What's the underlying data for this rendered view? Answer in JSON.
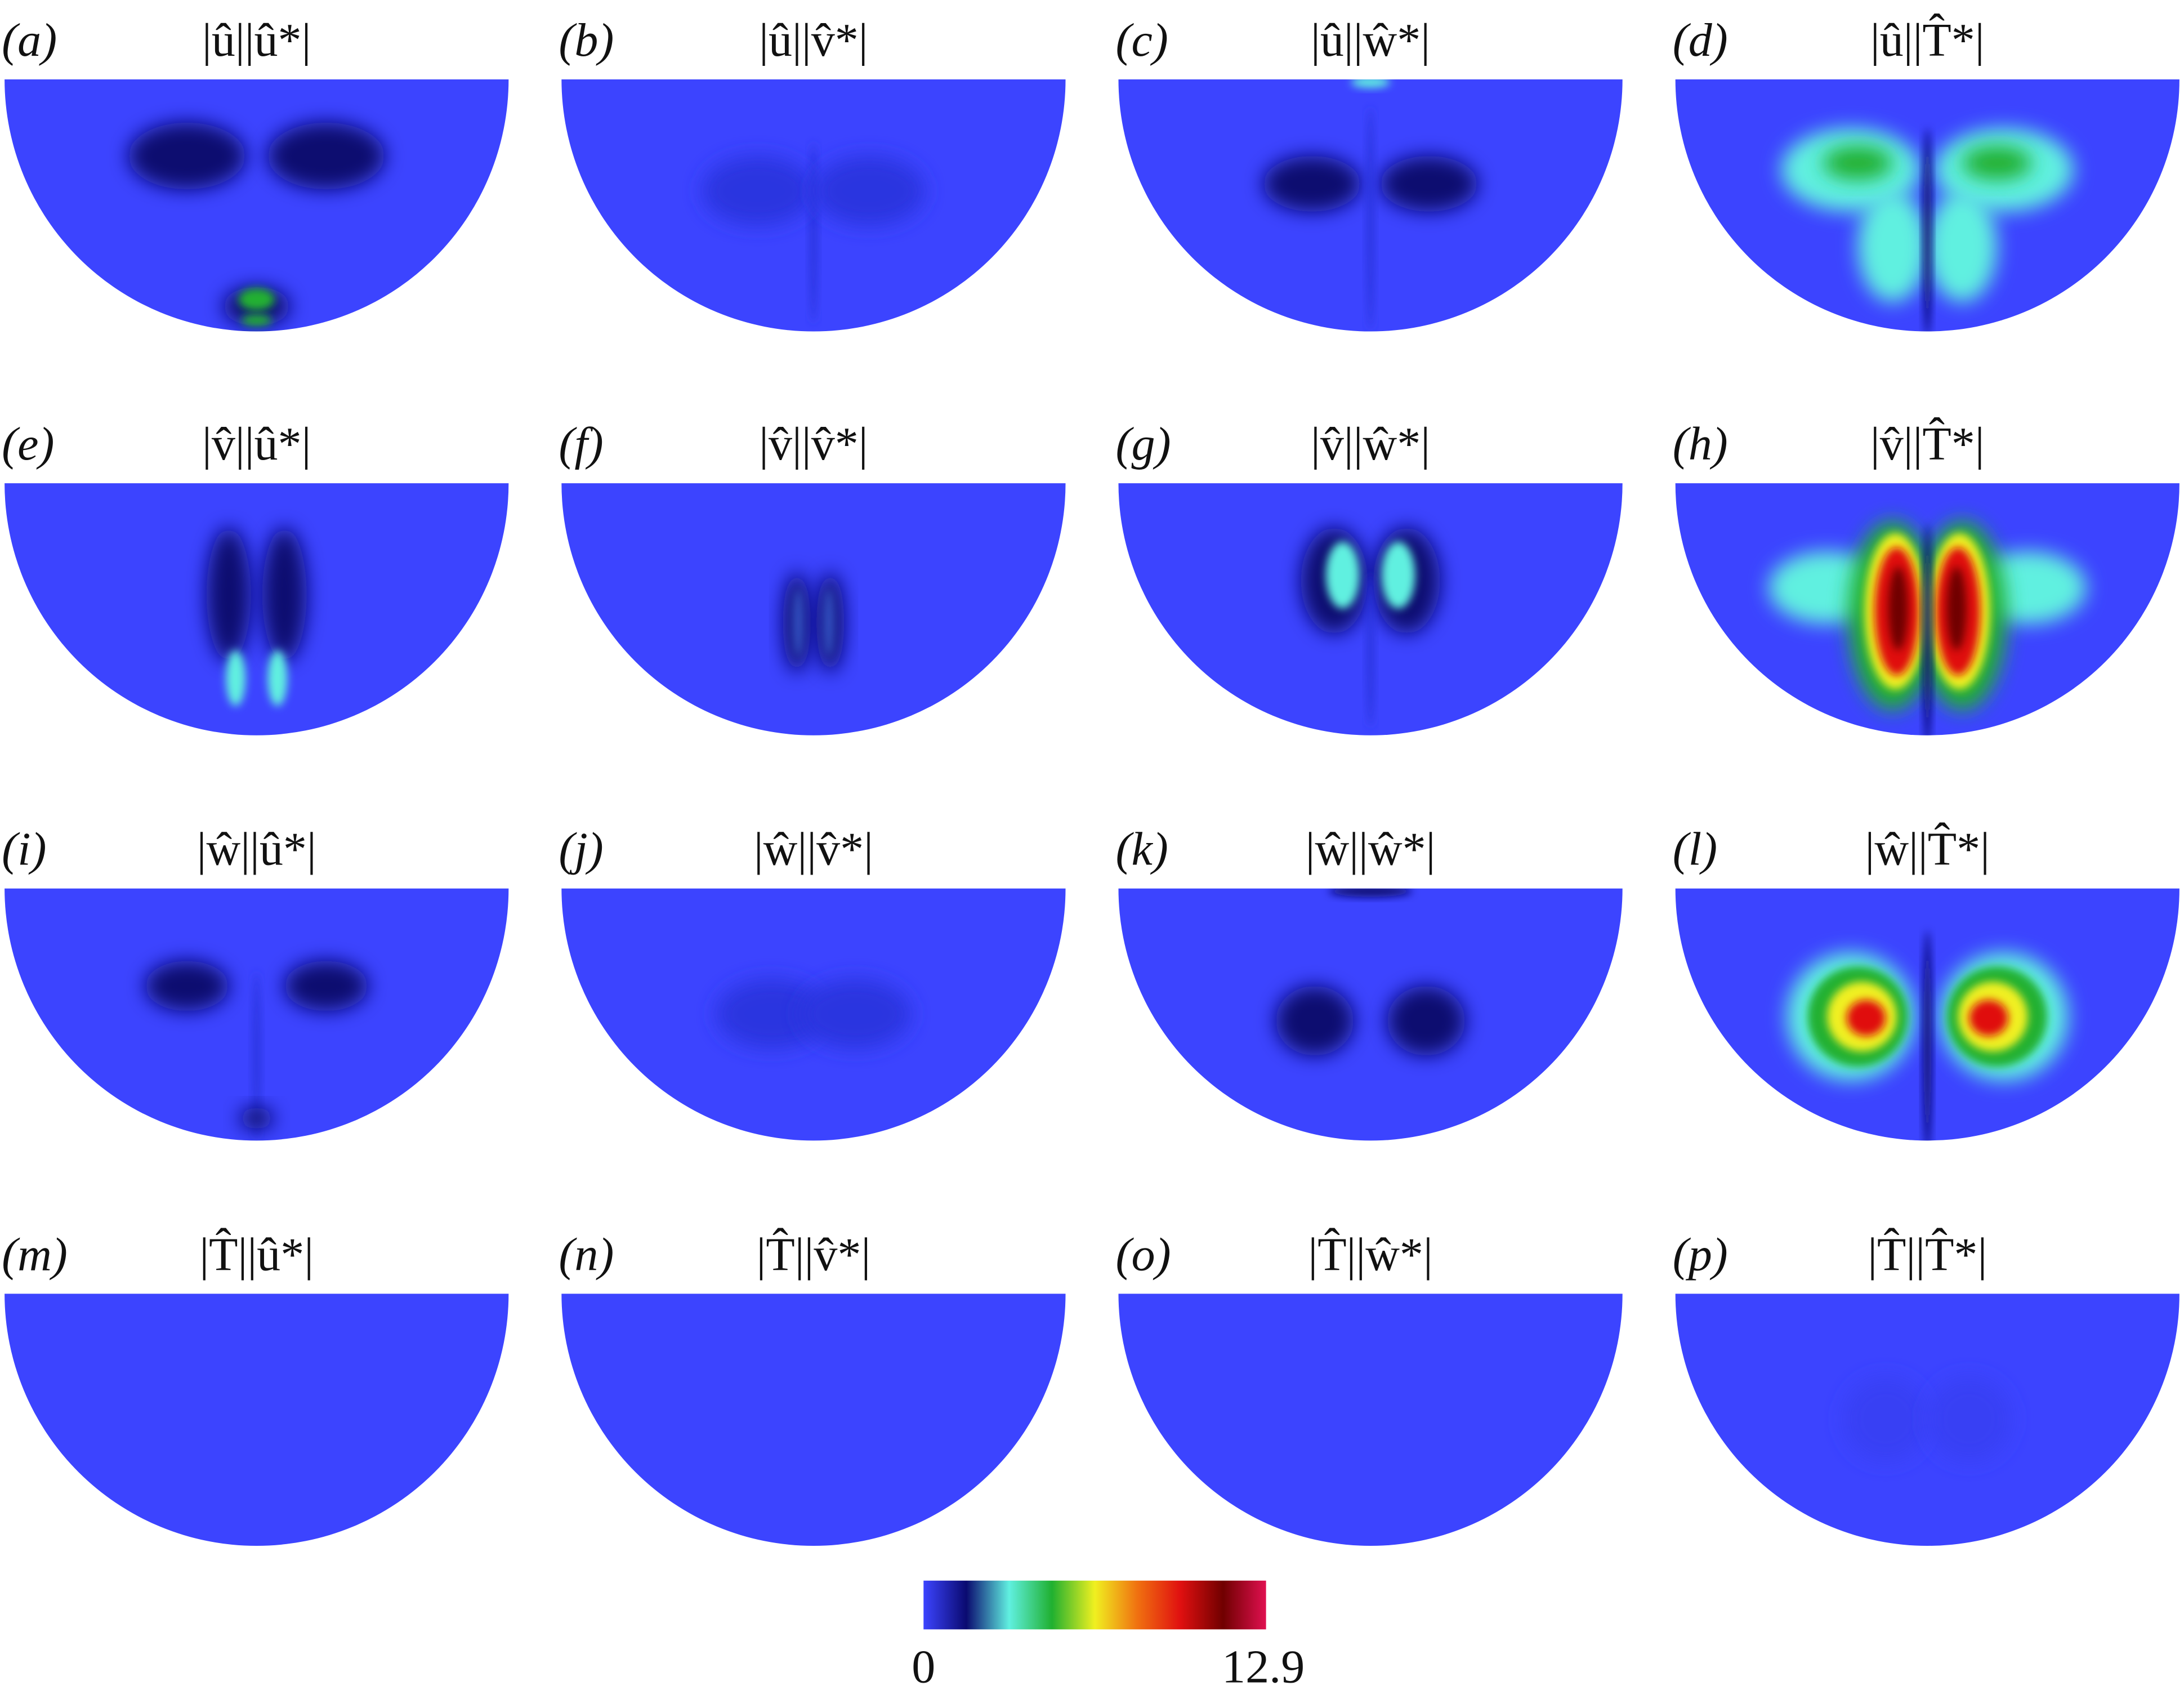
{
  "figure": {
    "panels": [
      {
        "label": "(a)",
        "title": "|û||û*|"
      },
      {
        "label": "(b)",
        "title": "|û||v̂*|"
      },
      {
        "label": "(c)",
        "title": "|û||ŵ*|"
      },
      {
        "label": "(d)",
        "title": "|û||T̂*|"
      },
      {
        "label": "(e)",
        "title": "|v̂||û*|"
      },
      {
        "label": "(f)",
        "title": "|v̂||v̂*|"
      },
      {
        "label": "(g)",
        "title": "|v̂||ŵ*|"
      },
      {
        "label": "(h)",
        "title": "|v̂||T̂*|"
      },
      {
        "label": "(i)",
        "title": "|ŵ||û*|"
      },
      {
        "label": "(j)",
        "title": "|ŵ||v̂*|"
      },
      {
        "label": "(k)",
        "title": "|ŵ||ŵ*|"
      },
      {
        "label": "(l)",
        "title": "|ŵ||T̂*|"
      },
      {
        "label": "(m)",
        "title": "|T̂||û*|"
      },
      {
        "label": "(n)",
        "title": "|T̂||v̂*|"
      },
      {
        "label": "(o)",
        "title": "|T̂||ŵ*|"
      },
      {
        "label": "(p)",
        "title": "|T̂||T̂*|"
      }
    ],
    "colorbar": {
      "min": 0,
      "max": 12.9,
      "colors": [
        "#3c44ff",
        "#0a0a70",
        "#60f0e0",
        "#20b030",
        "#f0f020",
        "#f07010",
        "#e01010",
        "#700000",
        "#e01050"
      ]
    }
  }
}
